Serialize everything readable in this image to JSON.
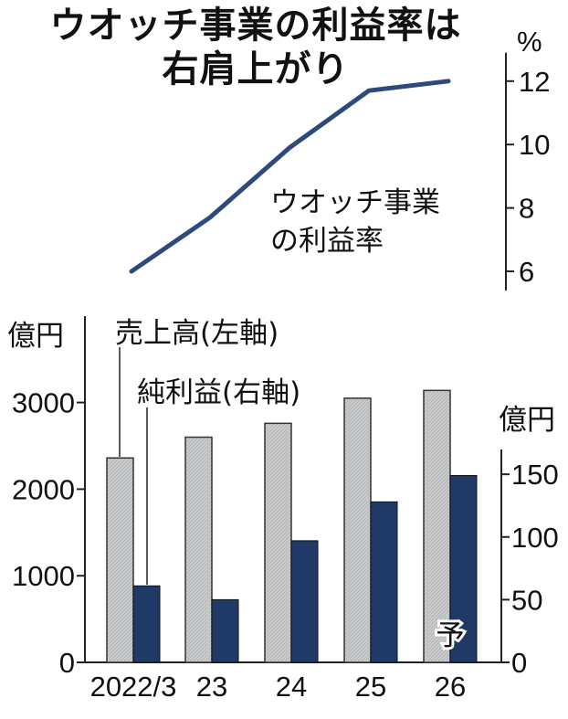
{
  "title": [
    "ウオッチ事業の利益率は",
    "右肩上がり"
  ],
  "chart_data": [
    {
      "type": "line",
      "x": [
        "2022/3",
        "23",
        "24",
        "25",
        "26"
      ],
      "series": [
        {
          "name": "ウオッチ事業の利益率",
          "values": [
            6.0,
            7.7,
            9.9,
            11.7,
            12.0
          ],
          "color": "#2d4a7c"
        }
      ],
      "ylabel": "%",
      "yticks": [
        6,
        8,
        10,
        12
      ],
      "ylim": [
        5.4,
        12.9
      ],
      "series_label_lines": [
        "ウオッチ事業",
        "の利益率"
      ],
      "grid": false
    },
    {
      "type": "bar",
      "categories": [
        "2022/3",
        "23",
        "24",
        "25",
        "26"
      ],
      "series": [
        {
          "name": "売上高(左軸)",
          "axis": "left",
          "values": [
            2360,
            2600,
            2760,
            3050,
            3140
          ],
          "color": "#c8cacc"
        },
        {
          "name": "純利益(右軸)",
          "axis": "right",
          "values": [
            61,
            50,
            97,
            128,
            149
          ],
          "color": "#1f3a66"
        }
      ],
      "left_axis": {
        "unit": "億円",
        "ticks": [
          0,
          1000,
          2000,
          3000
        ],
        "range": [
          0,
          4000
        ]
      },
      "right_axis": {
        "unit": "億円",
        "ticks": [
          0,
          50,
          100,
          150
        ],
        "range": [
          0,
          270
        ]
      },
      "annotations": [
        {
          "category": "26",
          "text": "予"
        }
      ],
      "grid": false
    }
  ],
  "colors": {
    "line": "#2d4a7c",
    "sales_bar": "#c8cacc",
    "profit_bar": "#1f3a66",
    "axis": "#222222"
  }
}
